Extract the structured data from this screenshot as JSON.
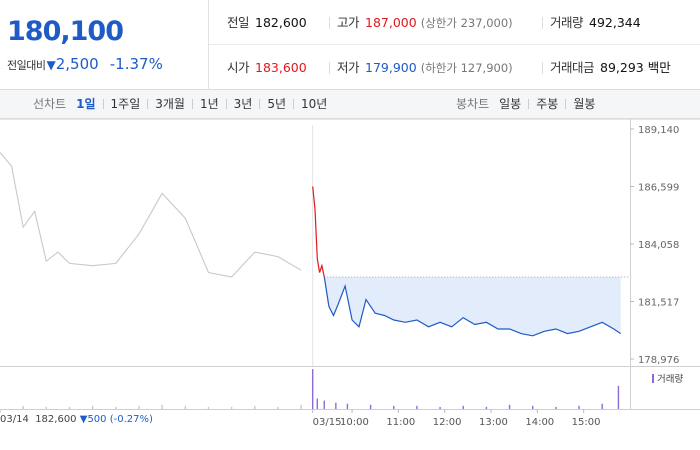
{
  "quote": {
    "price": "180,100",
    "change_label": "전일대비",
    "change_arrow": "▼",
    "change_amount": "2,500",
    "change_percent": "-1.37%"
  },
  "stats": {
    "prev_close_label": "전일",
    "prev_close": "182,600",
    "high_label": "고가",
    "high": "187,000",
    "upper_limit": "(상한가 237,000)",
    "volume_label": "거래량",
    "volume": "492,344",
    "open_label": "시가",
    "open": "183,600",
    "low_label": "저가",
    "low": "179,900",
    "lower_limit": "(하한가 127,900)",
    "value_label": "거래대금",
    "value": "89,293 백만"
  },
  "toolbar": {
    "line_label": "선차트",
    "line_periods": [
      "1일",
      "1주일",
      "3개월",
      "1년",
      "3년",
      "5년",
      "10년"
    ],
    "line_active": 0,
    "candle_label": "봉차트",
    "candle_periods": [
      "일봉",
      "주봉",
      "월봉"
    ]
  },
  "prev_day_info": {
    "date": "03/14",
    "close": "182,600",
    "arrow": "▼",
    "change": "500",
    "pct": "(-0.27%)"
  },
  "volume_legend": "거래량",
  "colors": {
    "up": "#e0191e",
    "down": "#1f5bc6",
    "prev_line": "#c8c8c8",
    "fill": "#dde9f9",
    "volume": "#8e6ad8"
  },
  "chart_data": {
    "type": "line",
    "y_ticks": [
      "189,140",
      "186,599",
      "184,058",
      "181,517",
      "178,976"
    ],
    "ylim": [
      178976,
      189140
    ],
    "x_ticks": [
      "03/14",
      "03/15",
      "10:00",
      "11:00",
      "12:00",
      "13:00",
      "14:00",
      "15:00"
    ],
    "reference_price": 182600,
    "series": [
      {
        "key": "prev_day",
        "x": [
          0,
          0.25,
          0.5,
          0.75,
          1,
          1.25,
          1.5,
          2,
          2.5,
          3,
          3.5,
          4,
          4.5,
          5,
          5.5,
          6,
          6.5
        ],
        "values": [
          188100,
          187500,
          184800,
          185500,
          183300,
          183700,
          183200,
          183100,
          183200,
          184500,
          186300,
          185200,
          182800,
          182600,
          183700,
          183500,
          182900
        ]
      },
      {
        "key": "today_open",
        "x": [
          6.75,
          6.8,
          6.85,
          6.9,
          6.95,
          7.0
        ],
        "values": [
          186600,
          185600,
          183400,
          182800,
          183100,
          182600
        ]
      },
      {
        "key": "today",
        "x": [
          7.0,
          7.1,
          7.2,
          7.3,
          7.45,
          7.6,
          7.75,
          7.9,
          8.1,
          8.3,
          8.5,
          8.75,
          9.0,
          9.25,
          9.5,
          9.75,
          10.0,
          10.25,
          10.5,
          10.75,
          11.0,
          11.25,
          11.5,
          11.75,
          12.0,
          12.25,
          12.5,
          12.75,
          13.0,
          13.25,
          13.4
        ],
        "values": [
          182600,
          181300,
          180900,
          181400,
          182200,
          180700,
          180400,
          181600,
          181000,
          180900,
          180700,
          180600,
          180700,
          180400,
          180600,
          180400,
          180800,
          180500,
          180600,
          180300,
          180300,
          180100,
          180000,
          180200,
          180300,
          180100,
          180200,
          180400,
          180600,
          180300,
          180100
        ]
      }
    ],
    "volume": {
      "x": [
        0.5,
        1,
        1.5,
        2,
        2.5,
        3,
        3.5,
        4,
        4.5,
        5,
        5.5,
        6,
        6.5,
        6.75,
        6.85,
        7.0,
        7.25,
        7.5,
        8,
        8.5,
        9,
        9.5,
        10,
        10.5,
        11,
        11.5,
        12,
        12.5,
        13,
        13.35
      ],
      "values": [
        3,
        2,
        2,
        3,
        2,
        3,
        4,
        3,
        2,
        2,
        3,
        2,
        4,
        38,
        10,
        8,
        6,
        5,
        4,
        3,
        3,
        2,
        3,
        2,
        4,
        3,
        2,
        3,
        5,
        22
      ]
    }
  }
}
